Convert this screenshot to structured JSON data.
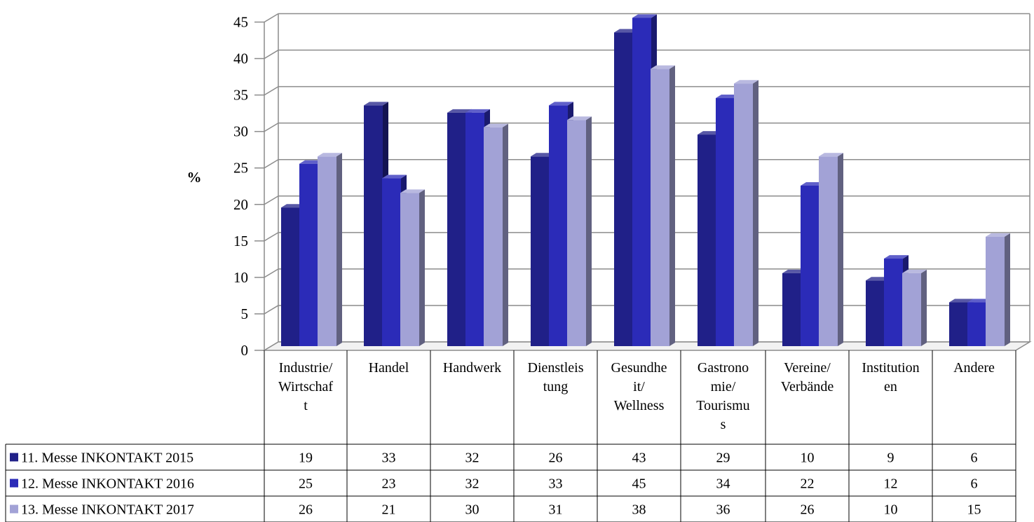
{
  "chart_data": {
    "type": "bar",
    "title": "",
    "xlabel": "",
    "ylabel": "%",
    "ylim": [
      0,
      45
    ],
    "yticks": [
      0,
      5,
      10,
      15,
      20,
      25,
      30,
      35,
      40,
      45
    ],
    "grid": true,
    "legend": "data-table-left",
    "categories": [
      [
        "Industrie/",
        "Wirtschaf",
        "t"
      ],
      [
        "Handel"
      ],
      [
        "Handwerk"
      ],
      [
        "Dienstleis",
        "tung"
      ],
      [
        "Gesundhe",
        "it/",
        "Wellness"
      ],
      [
        "Gastrono",
        "mie/",
        "Tourismu",
        "s"
      ],
      [
        "Vereine/",
        "Verbände"
      ],
      [
        "Institution",
        "en"
      ],
      [
        "Andere"
      ]
    ],
    "series": [
      {
        "name": "11. Messe INKONTAKT 2015",
        "color": "#202088",
        "values": [
          19,
          33,
          32,
          26,
          43,
          29,
          10,
          9,
          6
        ]
      },
      {
        "name": "12. Messe INKONTAKT 2016",
        "color": "#2b2bb8",
        "values": [
          25,
          23,
          32,
          33,
          45,
          34,
          22,
          12,
          6
        ]
      },
      {
        "name": "13. Messe INKONTAKT 2017",
        "color": "#a2a2d6",
        "values": [
          26,
          21,
          30,
          31,
          38,
          36,
          26,
          10,
          15
        ]
      }
    ]
  }
}
